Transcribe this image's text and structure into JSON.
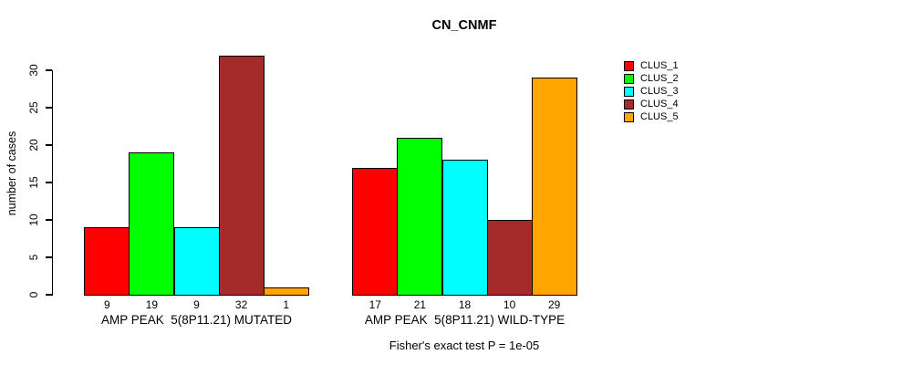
{
  "chart_data": {
    "type": "bar",
    "title": "CN_CNMF",
    "ylabel": "number of cases",
    "xlabel": "",
    "ylim": [
      0,
      30
    ],
    "yticks": [
      0,
      5,
      10,
      15,
      20,
      25,
      30
    ],
    "grid": false,
    "legend_position": "right",
    "bar_value_labels": true,
    "categories": [
      "AMP PEAK  5(8P11.21) MUTATED",
      "AMP PEAK  5(8P11.21) WILD-TYPE"
    ],
    "series": [
      {
        "name": "CLUS_1",
        "color": "#FF0000",
        "values": [
          9,
          17
        ]
      },
      {
        "name": "CLUS_2",
        "color": "#00FF00",
        "values": [
          19,
          21
        ]
      },
      {
        "name": "CLUS_3",
        "color": "#00FFFF",
        "values": [
          9,
          18
        ]
      },
      {
        "name": "CLUS_4",
        "color": "#A52A2A",
        "values": [
          32,
          10
        ]
      },
      {
        "name": "CLUS_5",
        "color": "#FFA500",
        "values": [
          1,
          29
        ]
      }
    ],
    "annotation": "Fisher's exact test P = 1e-05"
  },
  "colors": {
    "axis": "#000000",
    "background": "#ffffff",
    "text": "#000000"
  }
}
